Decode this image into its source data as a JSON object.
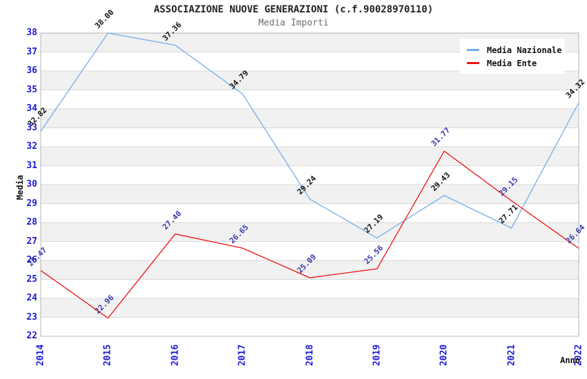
{
  "chart_data": {
    "type": "line",
    "title": "ASSOCIAZIONE NUOVE GENERAZIONI (c.f.90028970110)",
    "subtitle": "Media Importi",
    "xlabel": "Anno",
    "ylabel": "Media",
    "categories": [
      "2014",
      "2015",
      "2016",
      "2017",
      "2018",
      "2019",
      "2020",
      "2021",
      "2022"
    ],
    "ylim": [
      22,
      38
    ],
    "ytick_step": 1,
    "grid": true,
    "legend_position": "top-right",
    "series": [
      {
        "name": "Media Nazionale",
        "color": "#76ace6",
        "label_color": "#111111",
        "values": [
          32.82,
          38.0,
          37.36,
          34.79,
          29.24,
          27.19,
          29.43,
          27.71,
          34.32
        ]
      },
      {
        "name": "Media Ente",
        "color": "#ee1111",
        "label_color": "#3939ac",
        "values": [
          25.47,
          22.96,
          27.4,
          26.65,
          25.09,
          25.56,
          31.77,
          29.15,
          26.64
        ]
      }
    ],
    "colors": {
      "axis_tick_text": "#1a1ad6",
      "band_stripe": "#f1f1f1",
      "gridline": "#d8d8d8",
      "plot_border": "#b3b3b3",
      "subtitle_text": "#6f6f6f",
      "title_text": "#222222"
    }
  }
}
